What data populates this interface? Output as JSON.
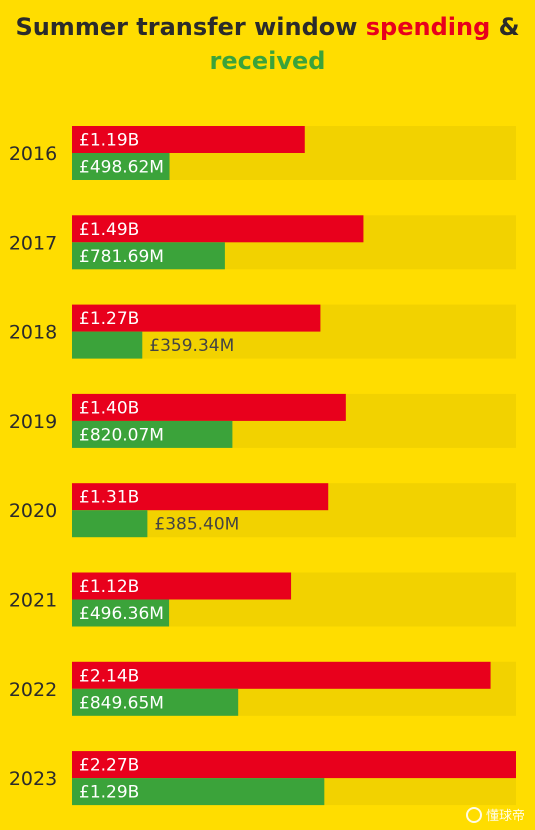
{
  "title": {
    "part1": "Summer transfer window ",
    "spending": "spending",
    "amp": " &",
    "received": "received"
  },
  "colors": {
    "background": "#FFDD00",
    "track": "#F2D200",
    "spending": "#E8001C",
    "received": "#3BA33A",
    "label_on_bar": "#FFFFFF",
    "label_off_bar": "#444444"
  },
  "watermark": {
    "text": "懂球帝",
    "icon": "logo-circle-icon"
  },
  "chart_data": {
    "type": "bar",
    "orientation": "horizontal",
    "categories": [
      "2016",
      "2017",
      "2018",
      "2019",
      "2020",
      "2021",
      "2022",
      "2023"
    ],
    "series": [
      {
        "name": "spending",
        "values": [
          1.19,
          1.49,
          1.27,
          1.4,
          1.31,
          1.12,
          2.14,
          2.27
        ],
        "labels": [
          "£1.19B",
          "£1.49B",
          "£1.27B",
          "£1.40B",
          "£1.31B",
          "£1.12B",
          "£2.14B",
          "£2.27B"
        ]
      },
      {
        "name": "received",
        "values": [
          0.49862,
          0.78169,
          0.35934,
          0.82007,
          0.3854,
          0.49636,
          0.84965,
          1.29
        ],
        "labels": [
          "£498.62M",
          "£781.69M",
          "£359.34M",
          "£820.07M",
          "£385.40M",
          "£496.36M",
          "£849.65M",
          "£1.29B"
        ]
      }
    ],
    "units": "£ billions",
    "xlim": [
      0,
      2.27
    ],
    "grid": false,
    "legend": "title"
  }
}
